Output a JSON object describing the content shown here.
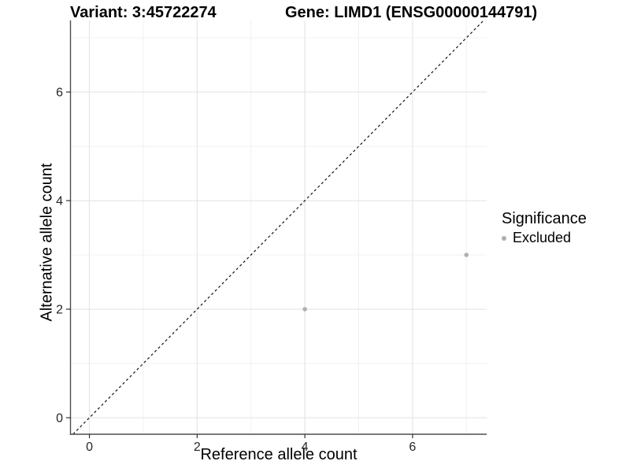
{
  "titles": {
    "left": "Variant: 3:45722274",
    "right": "Gene: LIMD1 (ENSG00000144791)"
  },
  "axes": {
    "x_label": "Reference allele count",
    "y_label": "Alternative allele count"
  },
  "legend": {
    "title": "Significance",
    "items": [
      {
        "label": "Excluded",
        "color": "#b0b0b0"
      }
    ]
  },
  "colors": {
    "background": "#ffffff",
    "axis_line": "#4d4d4d",
    "tick_mark": "#333333",
    "tick_label": "#262626",
    "grid_major": "#e4e4e4",
    "grid_minor": "#f1f1f1",
    "point": "#b0b0b0",
    "identity_line": "#111111"
  },
  "chart_data": {
    "type": "scatter",
    "title": "Variant: 3:45722274 | Gene: LIMD1 (ENSG00000144791)",
    "xlabel": "Reference allele count",
    "ylabel": "Alternative allele count",
    "xlim": [
      -0.344,
      7.376
    ],
    "ylim": [
      -0.304,
      7.319
    ],
    "x_major_ticks": [
      0,
      2,
      4,
      6
    ],
    "y_major_ticks": [
      0,
      2,
      4,
      6
    ],
    "x_minor_gridlines": [
      1,
      3,
      5,
      7
    ],
    "y_minor_gridlines": [
      1,
      3,
      5,
      7
    ],
    "grid": "major+minor",
    "legend_position": "right",
    "reference_line": {
      "type": "identity",
      "style": "dashed"
    },
    "series": [
      {
        "name": "Excluded",
        "color": "#b0b0b0",
        "points": [
          {
            "x": 4,
            "y": 2
          },
          {
            "x": 7,
            "y": 3
          }
        ]
      }
    ]
  }
}
